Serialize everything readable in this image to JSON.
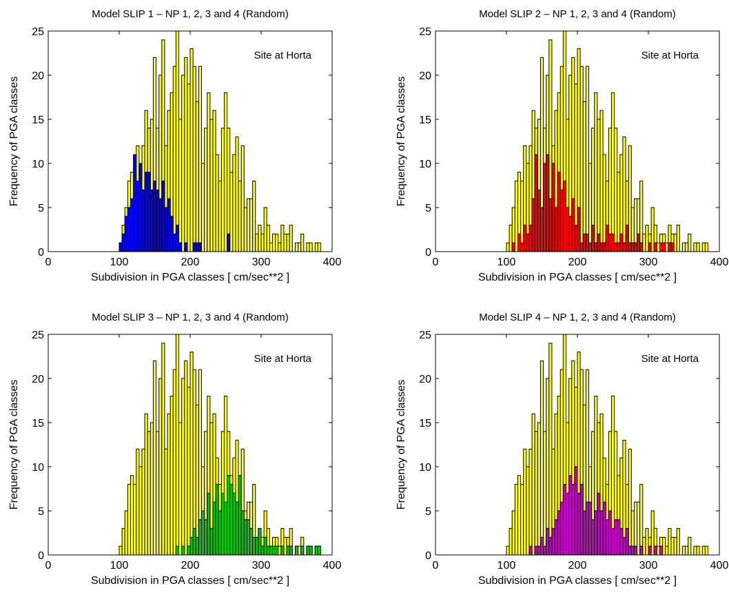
{
  "chart_data": [
    {
      "type": "bar",
      "title": "Model SLIP 1 – NP 1, 2, 3 and 4 (Random)",
      "xlabel": "Subdivision in PGA classes [ cm/sec**2 ]",
      "ylabel": "Frequency of PGA classes",
      "annotation": "Site at Horta",
      "xlim": [
        0,
        400
      ],
      "ylim": [
        0,
        25
      ],
      "xticks": [
        0,
        100,
        200,
        300,
        400
      ],
      "yticks": [
        0,
        5,
        10,
        15,
        20,
        25
      ],
      "bin_start": 100,
      "bin_width": 4,
      "series": [
        {
          "color": "#ffff00",
          "values": [
            1,
            3,
            5,
            8,
            9,
            8,
            12,
            10,
            12,
            16,
            14,
            15,
            22,
            14,
            20,
            24,
            12,
            16,
            18,
            21,
            25,
            15,
            20,
            22,
            19,
            23,
            21,
            17,
            21,
            10,
            14,
            18,
            15,
            16,
            11,
            8,
            14,
            18,
            14,
            9,
            11,
            13,
            8,
            12,
            5,
            6,
            6,
            8,
            2,
            3,
            2,
            5,
            3,
            1,
            2,
            2,
            1,
            3,
            2,
            2,
            3,
            0,
            1,
            1,
            2,
            0,
            1,
            1,
            0,
            1,
            1,
            0,
            0,
            0,
            0,
            0,
            0,
            0,
            0,
            0,
            0,
            0,
            0,
            0,
            0,
            0,
            0,
            0,
            0,
            0
          ]
        },
        {
          "color": "#0000ff",
          "values": [
            1,
            2,
            4,
            5,
            6,
            11,
            8,
            10,
            7,
            9,
            9,
            7,
            8,
            7,
            6,
            8,
            5,
            6,
            4,
            2,
            3,
            1,
            0,
            1,
            0,
            0,
            1,
            1,
            1,
            0,
            0,
            0,
            0,
            0,
            0,
            0,
            0,
            0,
            2,
            0,
            0,
            0,
            0,
            0,
            0,
            0,
            0,
            0,
            0,
            0,
            0,
            0,
            0,
            0,
            0,
            0,
            0,
            0,
            0,
            0,
            0,
            0,
            0,
            0,
            0,
            0,
            0,
            0,
            0,
            0,
            0,
            0,
            0,
            0,
            0,
            0,
            0,
            0,
            0,
            0,
            0,
            0,
            0,
            0,
            0,
            0,
            0,
            0,
            0,
            0
          ]
        }
      ]
    },
    {
      "type": "bar",
      "title": "Model SLIP 2 – NP 1, 2, 3 and 4 (Random)",
      "xlabel": "Subdivision in PGA classes [ cm/sec**2 ]",
      "ylabel": "Frequency of PGA classes",
      "annotation": "Site at Horta",
      "xlim": [
        0,
        400
      ],
      "ylim": [
        0,
        25
      ],
      "xticks": [
        0,
        100,
        200,
        300,
        400
      ],
      "yticks": [
        0,
        5,
        10,
        15,
        20,
        25
      ],
      "bin_start": 100,
      "bin_width": 4,
      "series": [
        {
          "color": "#ffff00",
          "values": [
            1,
            3,
            5,
            8,
            9,
            8,
            12,
            10,
            12,
            16,
            14,
            15,
            22,
            14,
            20,
            24,
            12,
            16,
            18,
            21,
            25,
            15,
            20,
            22,
            19,
            23,
            21,
            17,
            21,
            10,
            14,
            18,
            15,
            16,
            11,
            8,
            14,
            18,
            14,
            9,
            11,
            13,
            8,
            12,
            5,
            6,
            6,
            8,
            2,
            3,
            2,
            5,
            3,
            1,
            2,
            2,
            1,
            3,
            2,
            2,
            3,
            0,
            1,
            1,
            2,
            0,
            1,
            1,
            0,
            1,
            1,
            0,
            0,
            0,
            0,
            0,
            0,
            0,
            0,
            0,
            0,
            0,
            0,
            0,
            0,
            0,
            0,
            0,
            0,
            0
          ]
        },
        {
          "color": "#ff0000",
          "values": [
            0,
            0,
            1,
            0,
            2,
            1,
            3,
            2,
            3,
            6,
            11,
            7,
            5,
            10,
            11,
            6,
            10,
            5,
            9,
            7,
            8,
            5,
            4,
            6,
            3,
            5,
            1,
            2,
            2,
            1,
            3,
            1,
            2,
            1,
            1,
            3,
            2,
            2,
            1,
            1,
            2,
            1,
            3,
            1,
            1,
            1,
            2,
            1,
            0,
            0,
            1,
            0,
            1,
            0,
            1,
            1,
            0,
            1,
            1,
            0,
            0,
            0,
            0,
            0,
            0,
            0,
            0,
            0,
            0,
            0,
            0,
            0,
            0,
            0,
            0,
            0,
            0,
            0,
            0,
            0,
            0,
            0,
            0,
            0,
            0,
            0,
            0,
            0,
            0,
            0
          ]
        }
      ]
    },
    {
      "type": "bar",
      "title": "Model SLIP 3 – NP 1, 2, 3 and 4 (Random)",
      "xlabel": "Subdivision in PGA classes [ cm/sec**2 ]",
      "ylabel": "Frequency of PGA classes",
      "annotation": "Site at Horta",
      "xlim": [
        0,
        400
      ],
      "ylim": [
        0,
        25
      ],
      "xticks": [
        0,
        100,
        200,
        300,
        400
      ],
      "yticks": [
        0,
        5,
        10,
        15,
        20,
        25
      ],
      "bin_start": 100,
      "bin_width": 4,
      "series": [
        {
          "color": "#ffff00",
          "values": [
            1,
            3,
            5,
            8,
            9,
            8,
            12,
            10,
            12,
            16,
            14,
            15,
            22,
            14,
            20,
            24,
            12,
            16,
            18,
            21,
            25,
            15,
            20,
            22,
            19,
            23,
            21,
            17,
            21,
            10,
            14,
            18,
            15,
            16,
            11,
            8,
            14,
            18,
            14,
            9,
            11,
            13,
            8,
            12,
            5,
            6,
            6,
            8,
            2,
            3,
            2,
            5,
            3,
            1,
            2,
            2,
            1,
            3,
            2,
            2,
            3,
            0,
            1,
            1,
            2,
            0,
            1,
            1,
            0,
            1,
            1,
            0,
            0,
            0,
            0,
            0,
            0,
            0,
            0,
            0,
            0,
            0,
            0,
            0,
            0,
            0,
            0,
            0,
            0,
            0
          ]
        },
        {
          "color": "#00cc00",
          "values": [
            0,
            0,
            0,
            0,
            0,
            0,
            0,
            0,
            0,
            0,
            0,
            0,
            0,
            0,
            0,
            0,
            0,
            0,
            0,
            0,
            1,
            0,
            1,
            0,
            1,
            2,
            3,
            2,
            4,
            5,
            4,
            7,
            3,
            6,
            8,
            5,
            7,
            6,
            9,
            8,
            7,
            6,
            9,
            5,
            4,
            4,
            3,
            2,
            2,
            3,
            1,
            2,
            1,
            1,
            1,
            1,
            0,
            1,
            0,
            1,
            1,
            0,
            1,
            0,
            1,
            0,
            1,
            1,
            0,
            1,
            1,
            0,
            0,
            0,
            0,
            0,
            0,
            0,
            0,
            0,
            0,
            0,
            0,
            0,
            0,
            0,
            0,
            0,
            0,
            0
          ]
        }
      ]
    },
    {
      "type": "bar",
      "title": "Model SLIP 4 – NP 1, 2, 3 and 4 (Random)",
      "xlabel": "Subdivision in PGA classes [ cm/sec**2 ]",
      "ylabel": "Frequency of PGA classes",
      "annotation": "Site at Horta",
      "xlim": [
        0,
        400
      ],
      "ylim": [
        0,
        25
      ],
      "xticks": [
        0,
        100,
        200,
        300,
        400
      ],
      "yticks": [
        0,
        5,
        10,
        15,
        20,
        25
      ],
      "bin_start": 100,
      "bin_width": 4,
      "series": [
        {
          "color": "#ffff00",
          "values": [
            1,
            3,
            5,
            8,
            9,
            8,
            12,
            10,
            12,
            16,
            14,
            15,
            22,
            14,
            20,
            24,
            12,
            16,
            18,
            21,
            25,
            15,
            20,
            22,
            19,
            23,
            21,
            17,
            21,
            10,
            14,
            18,
            15,
            16,
            11,
            8,
            14,
            18,
            14,
            9,
            11,
            13,
            8,
            12,
            5,
            6,
            6,
            8,
            2,
            3,
            2,
            5,
            3,
            1,
            2,
            2,
            1,
            3,
            2,
            2,
            3,
            0,
            1,
            1,
            2,
            0,
            1,
            1,
            0,
            1,
            1,
            0,
            0,
            0,
            0,
            0,
            0,
            0,
            0,
            0,
            0,
            0,
            0,
            0,
            0,
            0,
            0,
            0,
            0,
            0
          ]
        },
        {
          "color": "#cc00cc",
          "values": [
            0,
            0,
            0,
            0,
            0,
            0,
            0,
            0,
            1,
            0,
            1,
            1,
            2,
            1,
            3,
            2,
            3,
            4,
            5,
            6,
            8,
            7,
            9,
            8,
            10,
            7,
            8,
            5,
            6,
            6,
            4,
            5,
            7,
            5,
            6,
            4,
            5,
            3,
            4,
            4,
            3,
            2,
            3,
            1,
            1,
            1,
            0,
            1,
            0,
            0,
            1,
            0,
            1,
            0,
            1,
            0,
            0,
            0,
            0,
            0,
            0,
            0,
            0,
            0,
            0,
            0,
            0,
            0,
            0,
            0,
            0,
            0,
            0,
            0,
            0,
            0,
            0,
            0,
            0,
            0,
            0,
            0,
            0,
            0,
            0,
            0,
            0,
            0,
            0,
            0
          ]
        }
      ]
    }
  ]
}
